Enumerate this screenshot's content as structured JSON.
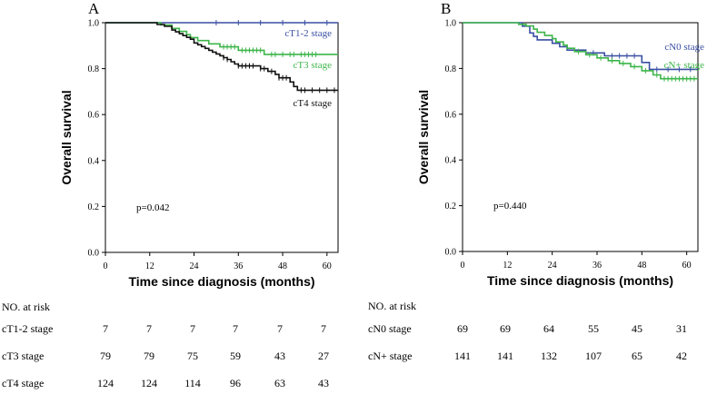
{
  "chart_data": [
    {
      "type": "line",
      "subtype": "kaplan-meier",
      "panel_label": "A",
      "xlabel": "Time since diagnosis (months)",
      "ylabel": "Overall survival",
      "xlim": [
        0,
        63
      ],
      "ylim": [
        0,
        1.0
      ],
      "xticks": [
        "0",
        "12",
        "24",
        "36",
        "48",
        "60"
      ],
      "yticks": [
        "0.0",
        "0.2",
        "0.4",
        "0.6",
        "0.8",
        "1.0"
      ],
      "annotation": "p=0.042",
      "series": [
        {
          "name": "cT1-2 stage",
          "color": "#3a4fa3",
          "steps": [
            [
              0,
              1.0
            ],
            [
              63,
              1.0
            ]
          ],
          "censors": [
            [
              30,
              1.0
            ],
            [
              36,
              1.0
            ],
            [
              42,
              1.0
            ],
            [
              48,
              1.0
            ],
            [
              54,
              1.0
            ],
            [
              60,
              1.0
            ]
          ]
        },
        {
          "name": "cT3 stage",
          "color": "#3db54a",
          "steps": [
            [
              0,
              1.0
            ],
            [
              15,
              1.0
            ],
            [
              15,
              0.99
            ],
            [
              18,
              0.99
            ],
            [
              18,
              0.975
            ],
            [
              20,
              0.975
            ],
            [
              20,
              0.962
            ],
            [
              22,
              0.962
            ],
            [
              22,
              0.948
            ],
            [
              23,
              0.948
            ],
            [
              23,
              0.935
            ],
            [
              25,
              0.935
            ],
            [
              25,
              0.922
            ],
            [
              28,
              0.922
            ],
            [
              28,
              0.908
            ],
            [
              31,
              0.908
            ],
            [
              31,
              0.895
            ],
            [
              36,
              0.895
            ],
            [
              36,
              0.88
            ],
            [
              43,
              0.88
            ],
            [
              43,
              0.862
            ],
            [
              63,
              0.862
            ]
          ],
          "censors": [
            [
              32,
              0.895
            ],
            [
              33,
              0.895
            ],
            [
              34,
              0.895
            ],
            [
              35,
              0.895
            ],
            [
              37,
              0.88
            ],
            [
              38,
              0.88
            ],
            [
              39,
              0.88
            ],
            [
              40,
              0.88
            ],
            [
              41,
              0.88
            ],
            [
              42,
              0.88
            ],
            [
              45,
              0.862
            ],
            [
              46,
              0.862
            ],
            [
              48,
              0.862
            ],
            [
              50,
              0.862
            ],
            [
              51,
              0.862
            ],
            [
              53,
              0.862
            ],
            [
              54,
              0.862
            ],
            [
              55,
              0.862
            ],
            [
              56,
              0.862
            ],
            [
              57,
              0.862
            ]
          ]
        },
        {
          "name": "cT4 stage",
          "color": "#111111",
          "steps": [
            [
              0,
              1.0
            ],
            [
              14,
              1.0
            ],
            [
              14,
              0.992
            ],
            [
              16,
              0.992
            ],
            [
              16,
              0.984
            ],
            [
              18,
              0.984
            ],
            [
              18,
              0.968
            ],
            [
              19,
              0.968
            ],
            [
              19,
              0.96
            ],
            [
              20,
              0.96
            ],
            [
              20,
              0.952
            ],
            [
              21,
              0.952
            ],
            [
              21,
              0.944
            ],
            [
              22,
              0.944
            ],
            [
              22,
              0.936
            ],
            [
              23,
              0.936
            ],
            [
              23,
              0.928
            ],
            [
              24,
              0.928
            ],
            [
              24,
              0.912
            ],
            [
              25,
              0.912
            ],
            [
              25,
              0.904
            ],
            [
              26,
              0.904
            ],
            [
              26,
              0.896
            ],
            [
              27,
              0.896
            ],
            [
              27,
              0.888
            ],
            [
              28,
              0.888
            ],
            [
              28,
              0.88
            ],
            [
              29,
              0.88
            ],
            [
              29,
              0.872
            ],
            [
              30,
              0.872
            ],
            [
              30,
              0.864
            ],
            [
              31,
              0.864
            ],
            [
              31,
              0.856
            ],
            [
              32,
              0.856
            ],
            [
              32,
              0.848
            ],
            [
              33,
              0.848
            ],
            [
              33,
              0.84
            ],
            [
              34,
              0.84
            ],
            [
              34,
              0.83
            ],
            [
              35,
              0.83
            ],
            [
              35,
              0.82
            ],
            [
              36,
              0.82
            ],
            [
              36,
              0.812
            ],
            [
              42,
              0.812
            ],
            [
              42,
              0.8
            ],
            [
              44,
              0.8
            ],
            [
              44,
              0.788
            ],
            [
              46,
              0.788
            ],
            [
              46,
              0.775
            ],
            [
              47,
              0.775
            ],
            [
              47,
              0.76
            ],
            [
              50,
              0.76
            ],
            [
              50,
              0.742
            ],
            [
              51,
              0.742
            ],
            [
              51,
              0.722
            ],
            [
              52,
              0.722
            ],
            [
              52,
              0.706
            ],
            [
              63,
              0.706
            ]
          ],
          "censors": [
            [
              32,
              0.848
            ],
            [
              33,
              0.84
            ],
            [
              36,
              0.812
            ],
            [
              37,
              0.812
            ],
            [
              38,
              0.812
            ],
            [
              39,
              0.812
            ],
            [
              40,
              0.812
            ],
            [
              42,
              0.8
            ],
            [
              43,
              0.8
            ],
            [
              45,
              0.788
            ],
            [
              47,
              0.76
            ],
            [
              48,
              0.76
            ],
            [
              49,
              0.76
            ],
            [
              53,
              0.706
            ],
            [
              54,
              0.706
            ],
            [
              56,
              0.706
            ],
            [
              58,
              0.706
            ],
            [
              60,
              0.706
            ],
            [
              62,
              0.706
            ]
          ]
        }
      ],
      "risk_table": {
        "header": "NO. at risk",
        "rows": [
          {
            "label": "cT1-2 stage",
            "values": [
              "7",
              "7",
              "7",
              "7",
              "7",
              "7"
            ]
          },
          {
            "label": "cT3 stage",
            "values": [
              "79",
              "79",
              "75",
              "59",
              "43",
              "27"
            ]
          },
          {
            "label": "cT4 stage",
            "values": [
              "124",
              "124",
              "114",
              "96",
              "63",
              "43"
            ]
          }
        ]
      }
    },
    {
      "type": "line",
      "subtype": "kaplan-meier",
      "panel_label": "B",
      "xlabel": "Time since diagnosis (months)",
      "ylabel": "Overall survival",
      "xlim": [
        0,
        63
      ],
      "ylim": [
        0,
        1.0
      ],
      "xticks": [
        "0",
        "12",
        "24",
        "36",
        "48",
        "60"
      ],
      "yticks": [
        "0.0",
        "0.2",
        "0.4",
        "0.6",
        "0.8",
        "1.0"
      ],
      "annotation": "p=0.440",
      "series": [
        {
          "name": "cN0 stage",
          "color": "#3a4fa3",
          "steps": [
            [
              0,
              1.0
            ],
            [
              16,
              1.0
            ],
            [
              16,
              0.985
            ],
            [
              18,
              0.985
            ],
            [
              18,
              0.955
            ],
            [
              19,
              0.955
            ],
            [
              19,
              0.94
            ],
            [
              20,
              0.94
            ],
            [
              20,
              0.925
            ],
            [
              24,
              0.925
            ],
            [
              24,
              0.91
            ],
            [
              26,
              0.91
            ],
            [
              26,
              0.895
            ],
            [
              28,
              0.895
            ],
            [
              28,
              0.88
            ],
            [
              33,
              0.88
            ],
            [
              33,
              0.868
            ],
            [
              38,
              0.868
            ],
            [
              38,
              0.855
            ],
            [
              48,
              0.855
            ],
            [
              48,
              0.826
            ],
            [
              50,
              0.826
            ],
            [
              50,
              0.796
            ],
            [
              63,
              0.796
            ]
          ],
          "censors": [
            [
              35,
              0.868
            ],
            [
              40,
              0.855
            ],
            [
              42,
              0.855
            ],
            [
              44,
              0.855
            ],
            [
              46,
              0.855
            ],
            [
              52,
              0.796
            ],
            [
              55,
              0.796
            ],
            [
              58,
              0.796
            ],
            [
              61,
              0.796
            ]
          ]
        },
        {
          "name": "cN+ stage",
          "color": "#3db54a",
          "steps": [
            [
              0,
              1.0
            ],
            [
              15,
              1.0
            ],
            [
              15,
              0.993
            ],
            [
              17,
              0.993
            ],
            [
              17,
              0.986
            ],
            [
              19,
              0.986
            ],
            [
              19,
              0.972
            ],
            [
              20,
              0.972
            ],
            [
              20,
              0.958
            ],
            [
              22,
              0.958
            ],
            [
              22,
              0.944
            ],
            [
              24,
              0.944
            ],
            [
              24,
              0.93
            ],
            [
              25,
              0.93
            ],
            [
              25,
              0.916
            ],
            [
              27,
              0.916
            ],
            [
              27,
              0.902
            ],
            [
              28,
              0.902
            ],
            [
              28,
              0.888
            ],
            [
              30,
              0.888
            ],
            [
              30,
              0.874
            ],
            [
              33,
              0.874
            ],
            [
              33,
              0.86
            ],
            [
              36,
              0.86
            ],
            [
              36,
              0.846
            ],
            [
              39,
              0.846
            ],
            [
              39,
              0.834
            ],
            [
              42,
              0.834
            ],
            [
              42,
              0.822
            ],
            [
              45,
              0.822
            ],
            [
              45,
              0.808
            ],
            [
              48,
              0.808
            ],
            [
              48,
              0.79
            ],
            [
              51,
              0.79
            ],
            [
              51,
              0.772
            ],
            [
              53,
              0.772
            ],
            [
              53,
              0.755
            ],
            [
              63,
              0.755
            ]
          ],
          "censors": [
            [
              31,
              0.874
            ],
            [
              34,
              0.86
            ],
            [
              37,
              0.846
            ],
            [
              40,
              0.834
            ],
            [
              43,
              0.822
            ],
            [
              46,
              0.808
            ],
            [
              49,
              0.79
            ],
            [
              52,
              0.772
            ],
            [
              54,
              0.755
            ],
            [
              55,
              0.755
            ],
            [
              56,
              0.755
            ],
            [
              57,
              0.755
            ],
            [
              58,
              0.755
            ],
            [
              59,
              0.755
            ],
            [
              60,
              0.755
            ],
            [
              61,
              0.755
            ],
            [
              62,
              0.755
            ]
          ]
        }
      ],
      "risk_table": {
        "header": "NO. at risk",
        "rows": [
          {
            "label": "cN0 stage",
            "values": [
              "69",
              "69",
              "64",
              "55",
              "45",
              "31"
            ]
          },
          {
            "label": "cN+ stage",
            "values": [
              "141",
              "141",
              "132",
              "107",
              "65",
              "42"
            ]
          }
        ]
      }
    }
  ]
}
